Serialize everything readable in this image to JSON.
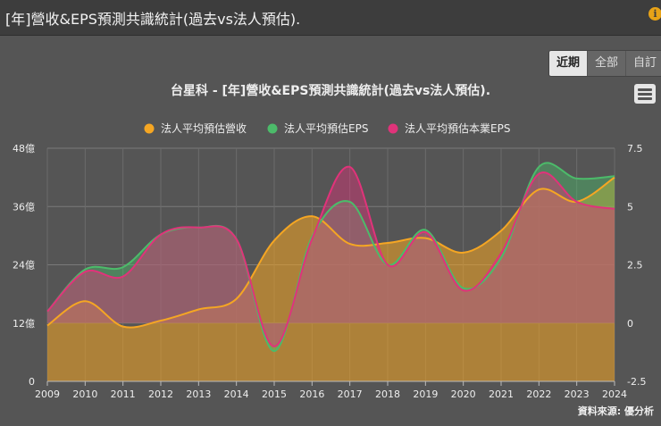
{
  "header": {
    "title": "[年]營收&EPS預測共識統計(過去vs法人預估).",
    "info_icon": "info-icon"
  },
  "range_tabs": [
    {
      "label": "近期",
      "active": true
    },
    {
      "label": "全部",
      "active": false
    },
    {
      "label": "自訂",
      "active": false
    }
  ],
  "menu": {
    "icon": "hamburger-menu-icon"
  },
  "source": "資料來源: 優分析",
  "chart_data": {
    "type": "area",
    "title": "台星科 - [年]營收&EPS預測共識統計(過去vs法人預估).",
    "x": [
      2009,
      2010,
      2011,
      2012,
      2013,
      2014,
      2015,
      2016,
      2017,
      2018,
      2019,
      2020,
      2021,
      2022,
      2023,
      2024
    ],
    "xlabel": "",
    "y_left": {
      "label": "",
      "ticks": [
        "0",
        "12億",
        "24億",
        "36億",
        "48億"
      ],
      "ylim": [
        0,
        48
      ]
    },
    "y_right": {
      "label": "",
      "ticks": [
        "-2.5",
        "0",
        "2.5",
        "5",
        "7.5"
      ],
      "ylim": [
        -2.5,
        7.5
      ]
    },
    "series": [
      {
        "name": "法人平均預估營收",
        "axis": "left",
        "color": "#f5a623",
        "values": [
          11.5,
          16.5,
          11.3,
          12.5,
          14.8,
          17,
          29,
          34,
          28.3,
          28.5,
          29.5,
          26.5,
          31,
          39.5,
          37,
          42
        ]
      },
      {
        "name": "法人平均預估EPS",
        "axis": "right",
        "color": "#4cbb6a",
        "values": [
          0.5,
          2.3,
          2.4,
          3.8,
          4.1,
          3.6,
          -1.2,
          3.7,
          5.2,
          2.5,
          4.0,
          1.5,
          2.8,
          6.7,
          6.2,
          6.3
        ]
      },
      {
        "name": "法人平均預估本業EPS",
        "axis": "right",
        "color": "#e0337a",
        "values": [
          0.5,
          2.2,
          2.0,
          3.8,
          4.1,
          3.6,
          -1.0,
          3.6,
          6.7,
          2.5,
          3.9,
          1.4,
          3.0,
          6.4,
          5.2,
          4.9
        ]
      }
    ],
    "legend": "top-center",
    "grid": true
  }
}
